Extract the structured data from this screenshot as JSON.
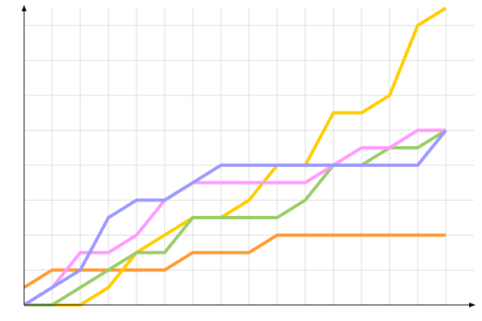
{
  "chart_data": {
    "type": "line",
    "title": "",
    "xlabel": "",
    "ylabel": "",
    "x": [
      0,
      1,
      2,
      3,
      4,
      5,
      6,
      7,
      8,
      9,
      10,
      11,
      12,
      13,
      14,
      15
    ],
    "xlim": [
      0,
      15
    ],
    "ylim": [
      0,
      8.5
    ],
    "grid": true,
    "legend": "none",
    "series": [
      {
        "color": "#ff9933",
        "values": [
          0.5,
          1,
          1,
          1,
          1,
          1,
          1.5,
          1.5,
          1.5,
          2,
          2,
          2,
          2,
          2,
          2,
          2
        ]
      },
      {
        "color": "#ffcc00",
        "values": [
          0,
          0,
          0,
          0.5,
          1.5,
          2,
          2.5,
          2.5,
          3,
          4,
          4,
          5.5,
          5.5,
          6,
          8,
          8.5
        ]
      },
      {
        "color": "#99cc66",
        "values": [
          0,
          0,
          0.5,
          1,
          1.5,
          1.5,
          2.5,
          2.5,
          2.5,
          2.5,
          3,
          4,
          4,
          4.5,
          4.5,
          5
        ]
      },
      {
        "color": "#ff99ff",
        "values": [
          0,
          0.5,
          1.5,
          1.5,
          2,
          3,
          3.5,
          3.5,
          3.5,
          3.5,
          3.5,
          4,
          4.5,
          4.5,
          5,
          5
        ]
      },
      {
        "color": "#9999ff",
        "values": [
          0,
          0.5,
          1,
          2.5,
          3,
          3,
          3.5,
          4,
          4,
          4,
          4,
          4,
          4,
          4,
          4,
          5
        ]
      }
    ]
  }
}
